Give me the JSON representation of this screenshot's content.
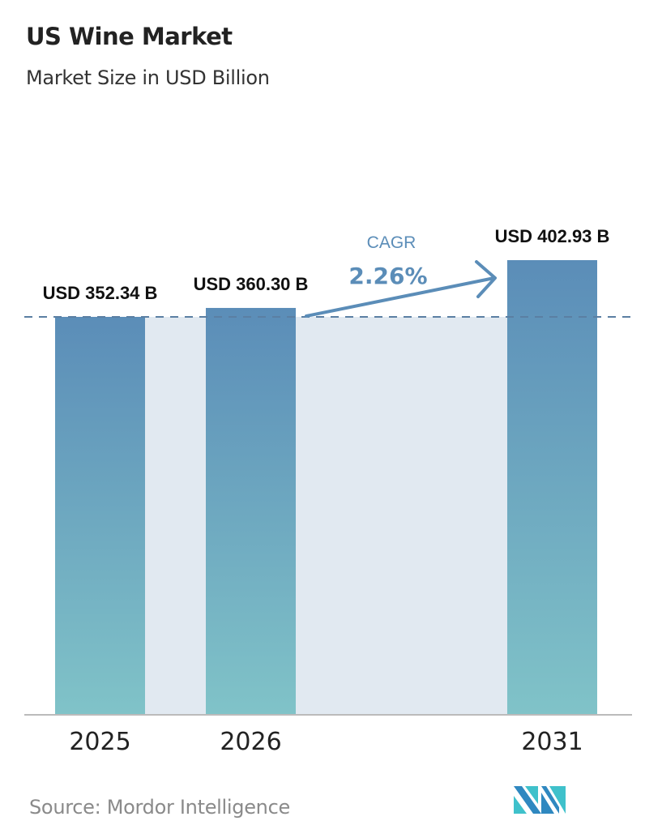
{
  "title": "US Wine Market",
  "subtitle": "Market Size in USD Billion",
  "source": "Source:  Mordor Intelligence",
  "chart_data": {
    "type": "bar",
    "categories": [
      "2025",
      "2026",
      "2031"
    ],
    "values": [
      352.34,
      360.3,
      402.93
    ],
    "data_labels": [
      "USD 352.34 B",
      "USD 360.30 B",
      "USD 402.93 B"
    ],
    "title": "US Wine Market",
    "subtitle": "Market Size in USD Billion",
    "xlabel": "",
    "ylabel": "",
    "annotation": {
      "label": "CAGR",
      "value": "2.26%"
    },
    "grid": false,
    "colors": {
      "bar_top": "#5b8db8",
      "bar_bottom": "#80c3c8",
      "fill_region": "#e1e9f1",
      "annotation": "#5b8db8"
    }
  }
}
